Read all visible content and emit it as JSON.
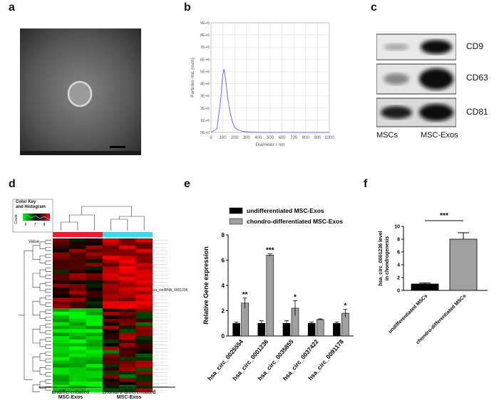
{
  "panels": {
    "a": {
      "label": "a"
    },
    "b": {
      "label": "b"
    },
    "c": {
      "label": "c"
    },
    "d": {
      "label": "d"
    },
    "e": {
      "label": "e"
    },
    "f": {
      "label": "f"
    }
  },
  "panel_c": {
    "bands": [
      "CD9",
      "CD63",
      "CD81"
    ],
    "lanes": [
      "MSCs",
      "MSC-Exos"
    ]
  },
  "panel_d": {
    "color_key_title": "Color Key\nand Histogram",
    "count_label": "Count",
    "value_label": "Value",
    "color_key_ticks": [
      "6",
      "7",
      "8"
    ],
    "highlight_gene": "hsa_circRNA_0001236",
    "group_labels": [
      "undifferentiated\nMSC-Exos",
      "chondro-differentiated\nMSC-Exos"
    ]
  },
  "chart_data": [
    {
      "panel": "b",
      "type": "line",
      "xlabel": "Diameter / nm",
      "ylabel": "Particles /mL (sum)",
      "xlim": [
        0,
        1000
      ],
      "xticks": [
        0,
        100,
        200,
        300,
        400,
        500,
        600,
        700,
        800,
        900,
        1000
      ],
      "ylim": [
        0,
        9
      ],
      "yticks": [
        "0E+0",
        "1E+6",
        "2E+6",
        "3E+6",
        "4E+6",
        "5E+6",
        "6E+6",
        "7E+6",
        "8E+6",
        "9E+6"
      ],
      "x": [
        0,
        50,
        80,
        100,
        110,
        120,
        130,
        140,
        160,
        180,
        200,
        230,
        260,
        300,
        350,
        400,
        500,
        700,
        1000
      ],
      "y": [
        0,
        0.3,
        2.5,
        4.8,
        5.2,
        4.6,
        3.8,
        2.9,
        1.7,
        0.9,
        0.4,
        0.2,
        0.1,
        0.05,
        0.02,
        0,
        0,
        0,
        0
      ],
      "grid": true
    },
    {
      "panel": "e",
      "type": "bar",
      "ylabel": "Relative Gene expression",
      "ylim": [
        0,
        8
      ],
      "yticks": [
        0,
        2,
        4,
        6,
        8
      ],
      "categories": [
        "hsa_circ_0025554",
        "hsa_circ_0001236",
        "hsa_circ_0035855",
        "hsa_circ_0037422",
        "hsa_circ_0091178"
      ],
      "series": [
        {
          "name": "undifferentiated MSC-Exos",
          "values": [
            1.0,
            1.0,
            1.0,
            1.0,
            1.0
          ],
          "errors": [
            0.1,
            0.2,
            0.2,
            0.1,
            0.1
          ],
          "color": "#000000"
        },
        {
          "name": "chondro-differentiated MSC-Exos",
          "values": [
            2.6,
            6.4,
            2.2,
            1.3,
            1.8
          ],
          "errors": [
            0.4,
            0.1,
            0.6,
            0.05,
            0.3
          ],
          "color": "#a0a0a0"
        }
      ],
      "significance": [
        "**",
        "***",
        "*",
        "",
        "*"
      ]
    },
    {
      "panel": "f",
      "type": "bar",
      "ylabel": "hsa_circ_0001236 level\nin chondrogenesis",
      "ylim": [
        0,
        10
      ],
      "yticks": [
        0,
        2,
        4,
        6,
        8,
        10
      ],
      "categories": [
        "undifferentiated MSCs",
        "chondro-differentiated MSCs"
      ],
      "values": [
        1.0,
        8.0
      ],
      "errors": [
        0.15,
        1.0
      ],
      "colors": [
        "#000000",
        "#a0a0a0"
      ],
      "significance": "***"
    }
  ]
}
